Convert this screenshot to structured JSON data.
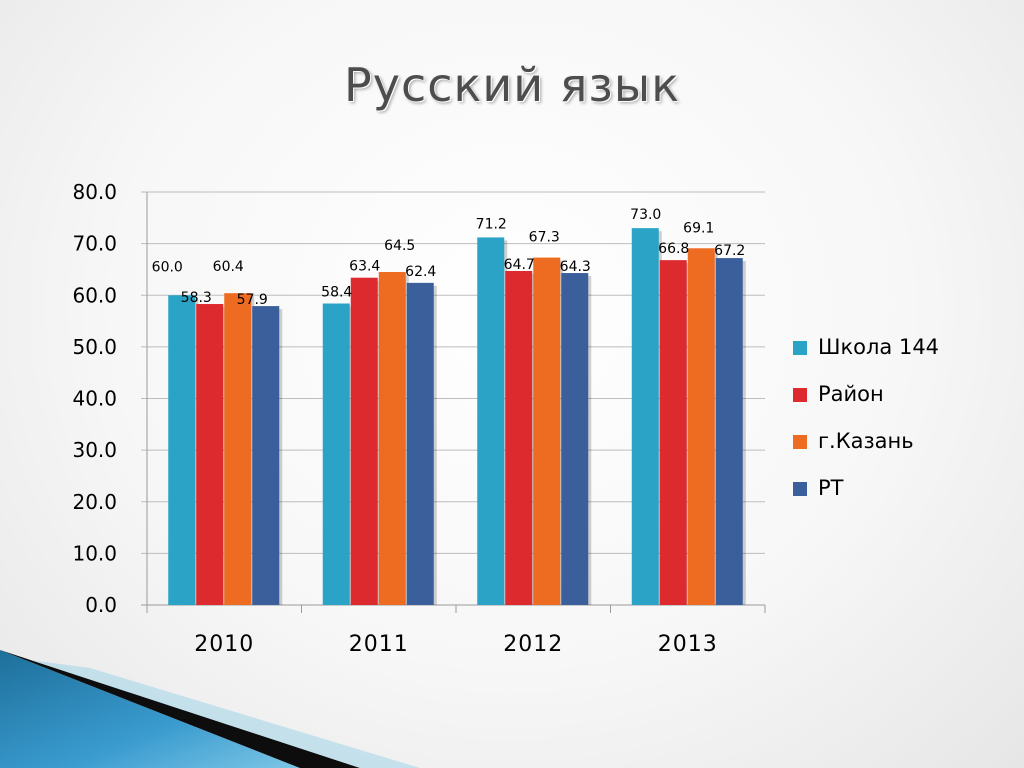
{
  "title": "Русский язык",
  "chart_data": {
    "type": "bar",
    "title": "Русский язык",
    "xlabel": "",
    "ylabel": "",
    "categories": [
      "2010",
      "2011",
      "2012",
      "2013"
    ],
    "series": [
      {
        "name": "Школа 144",
        "color": "#2aa3c6",
        "values": [
          60.0,
          58.4,
          71.2,
          73.0
        ],
        "labels": [
          "60.0",
          "58.4",
          "71.2",
          "73.0"
        ]
      },
      {
        "name": "Район",
        "color": "#dd2a2e",
        "values": [
          58.3,
          63.4,
          64.7,
          66.8
        ],
        "labels": [
          "58.3",
          "63.4",
          "64.7",
          "66.8"
        ]
      },
      {
        "name": "г.Казань",
        "color": "#ee6b22",
        "values": [
          60.4,
          64.5,
          67.3,
          69.1
        ],
        "labels": [
          "60.4",
          "64.5",
          "67.3",
          "69.1"
        ]
      },
      {
        "name": "РТ",
        "color": "#3b5f9b",
        "values": [
          57.9,
          62.4,
          64.3,
          67.2
        ],
        "labels": [
          "57.9",
          "62.4",
          "64.3",
          "67.2"
        ]
      }
    ],
    "y_ticks": [
      "0.0",
      "10.0",
      "20.0",
      "30.0",
      "40.0",
      "50.0",
      "60.0",
      "70.0",
      "80.0"
    ],
    "ylim": [
      0,
      80
    ],
    "grid": true,
    "legend": "right"
  }
}
